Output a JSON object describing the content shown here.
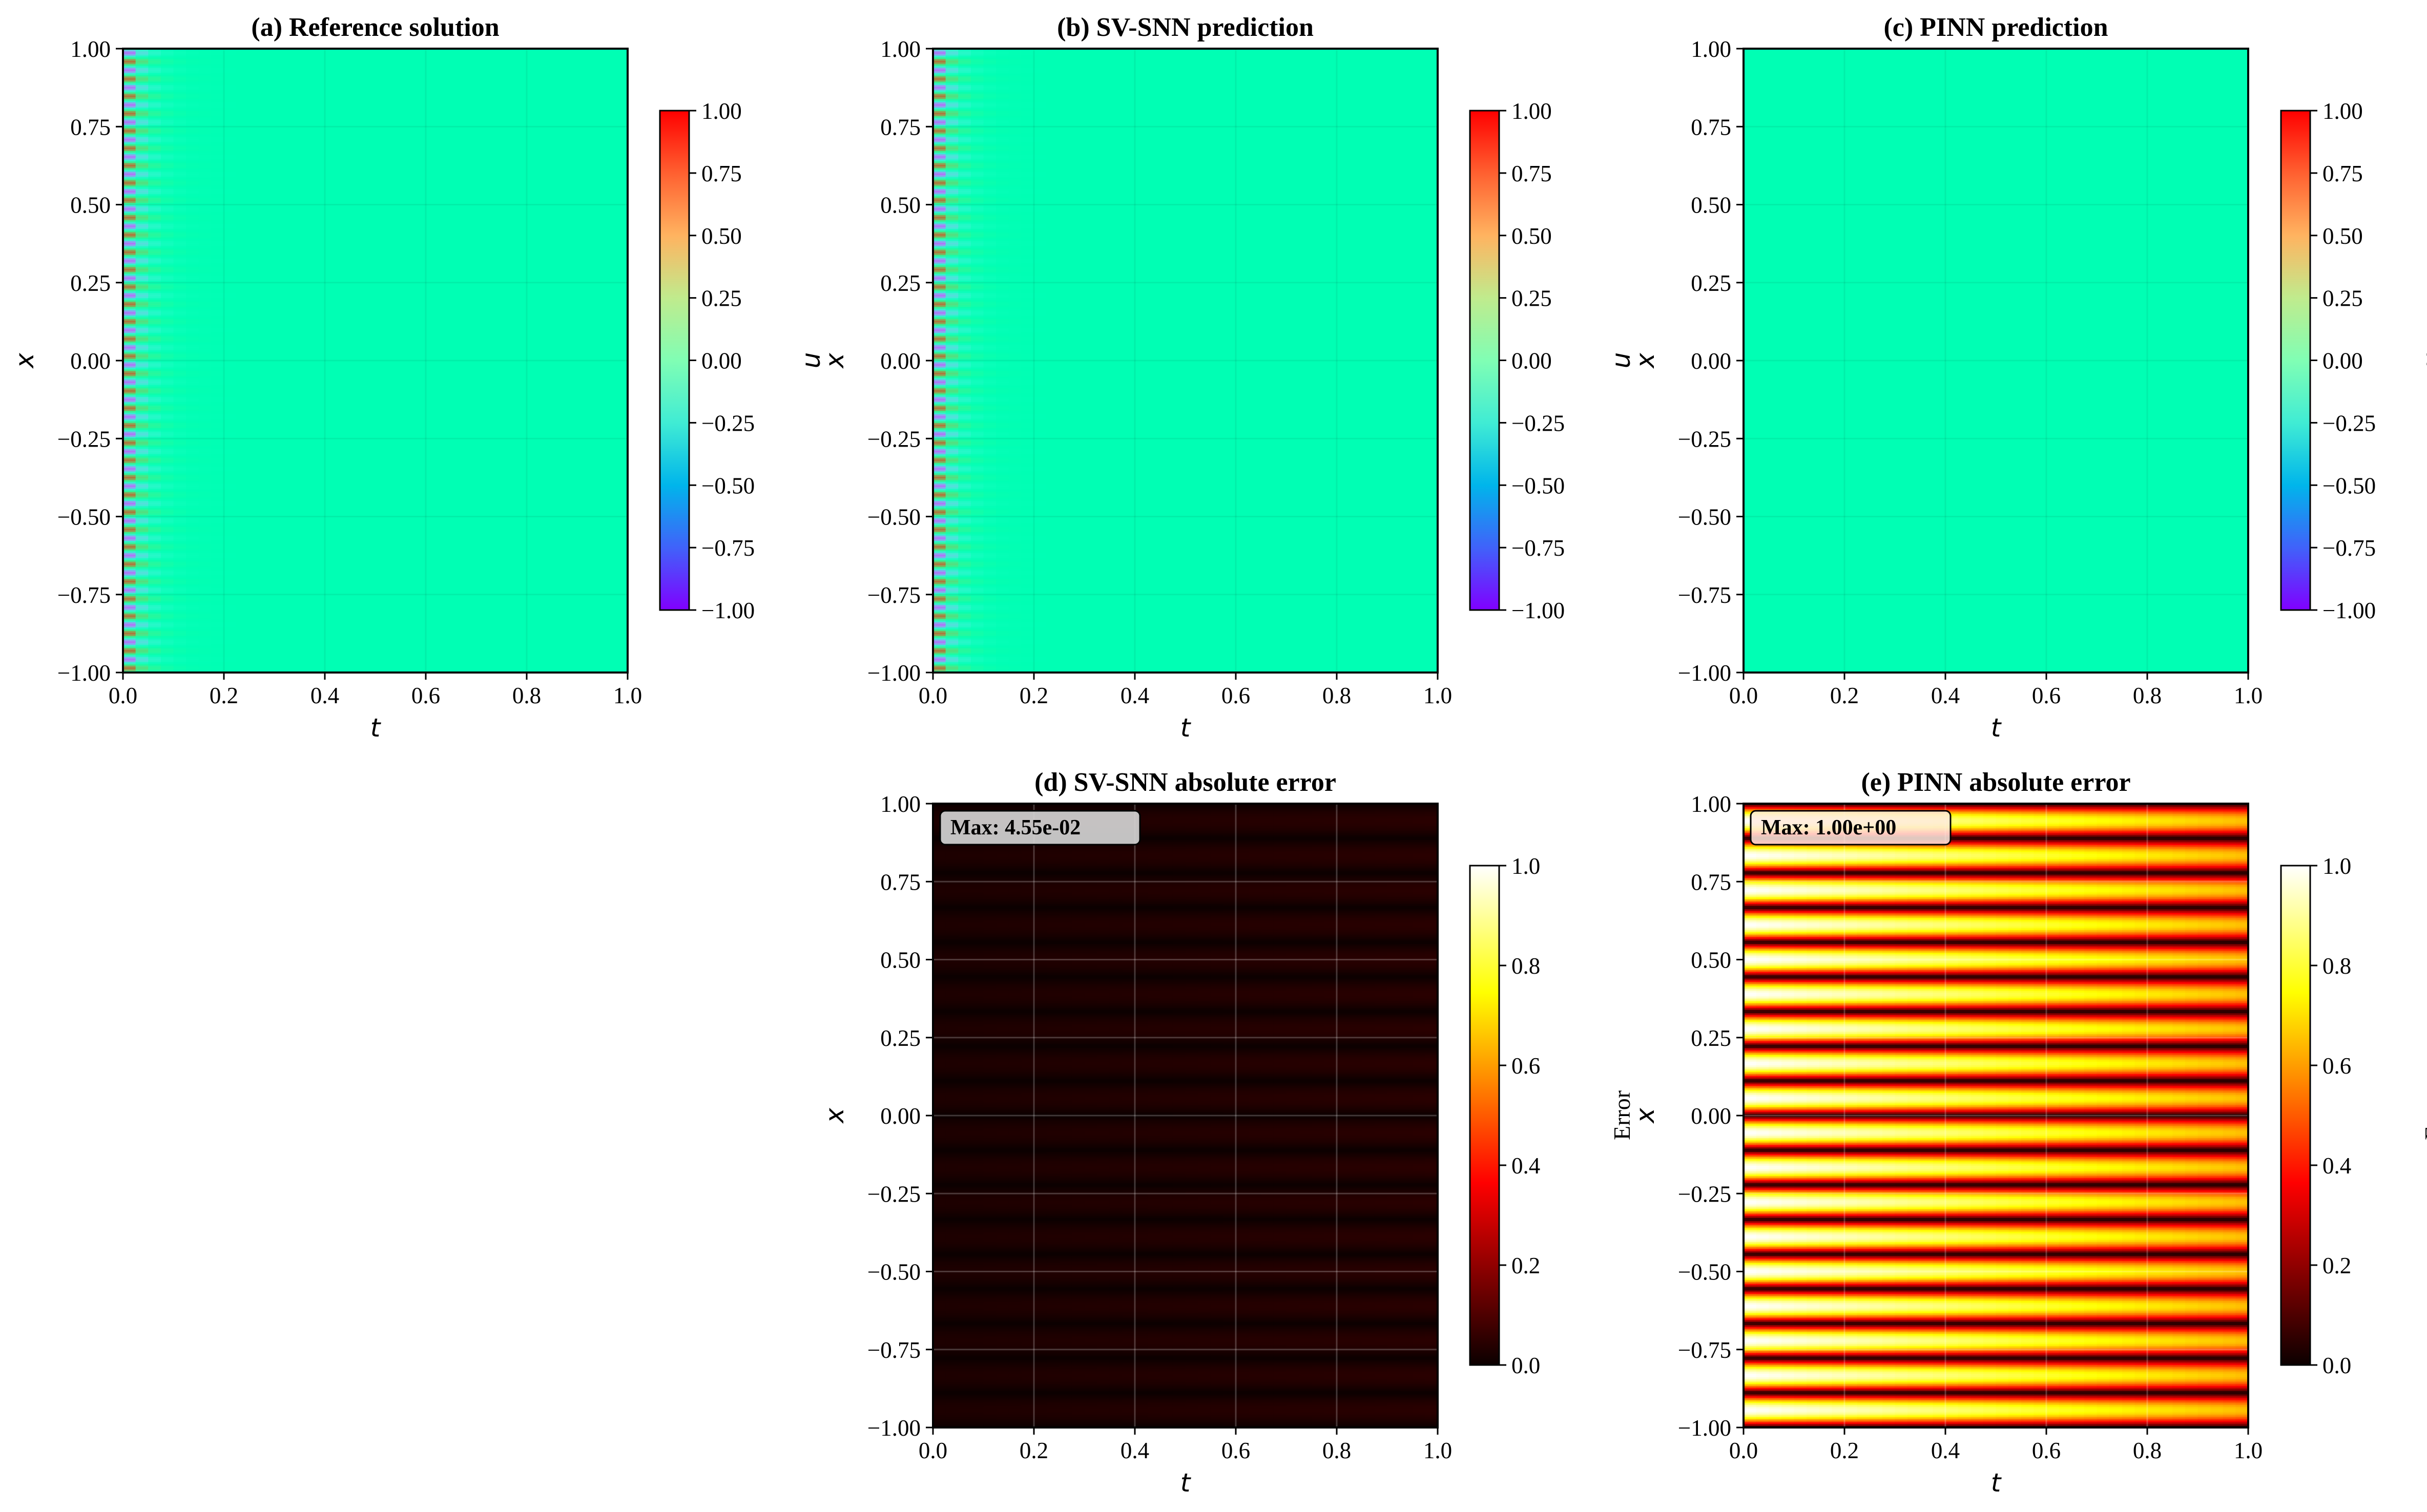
{
  "chart_data": [
    {
      "id": "a",
      "type": "heatmap",
      "title": "(a) Reference solution",
      "xlabel": "t",
      "ylabel": "x",
      "xlim": [
        0,
        1
      ],
      "ylim": [
        -1,
        1
      ],
      "xticks": [
        "0.0",
        "0.2",
        "0.4",
        "0.6",
        "0.8",
        "1.0"
      ],
      "yticks": [
        "1.00",
        "0.75",
        "0.50",
        "0.25",
        "0.00",
        "−0.25",
        "−0.50",
        "−0.75",
        "−1.00"
      ],
      "field": "reference",
      "stripes": 36,
      "decay_rate": 30,
      "initial_amplitude": 1.0,
      "colormap": "rainbow",
      "grid": true,
      "colorbar": {
        "label": "u",
        "range": [
          -1,
          1
        ],
        "ticks": [
          "1.00",
          "0.75",
          "0.50",
          "0.25",
          "0.00",
          "−0.25",
          "−0.50",
          "−0.75",
          "−1.00"
        ]
      }
    },
    {
      "id": "b",
      "type": "heatmap",
      "title": "(b) SV-SNN prediction",
      "xlabel": "t",
      "ylabel": "x",
      "xlim": [
        0,
        1
      ],
      "ylim": [
        -1,
        1
      ],
      "xticks": [
        "0.0",
        "0.2",
        "0.4",
        "0.6",
        "0.8",
        "1.0"
      ],
      "yticks": [
        "1.00",
        "0.75",
        "0.50",
        "0.25",
        "0.00",
        "−0.25",
        "−0.50",
        "−0.75",
        "−1.00"
      ],
      "field": "reference",
      "stripes": 36,
      "decay_rate": 30,
      "initial_amplitude": 1.0,
      "colormap": "rainbow",
      "grid": true,
      "colorbar": {
        "label": "u",
        "range": [
          -1,
          1
        ],
        "ticks": [
          "1.00",
          "0.75",
          "0.50",
          "0.25",
          "0.00",
          "−0.25",
          "−0.50",
          "−0.75",
          "−1.00"
        ]
      }
    },
    {
      "id": "c",
      "type": "heatmap",
      "title": "(c) PINN prediction",
      "xlabel": "t",
      "ylabel": "x",
      "xlim": [
        0,
        1
      ],
      "ylim": [
        -1,
        1
      ],
      "xticks": [
        "0.0",
        "0.2",
        "0.4",
        "0.6",
        "0.8",
        "1.0"
      ],
      "yticks": [
        "1.00",
        "0.75",
        "0.50",
        "0.25",
        "0.00",
        "−0.25",
        "−0.50",
        "−0.75",
        "−1.00"
      ],
      "field": "constant",
      "constant_value": 0.0,
      "colormap": "rainbow",
      "grid": true,
      "colorbar": {
        "label": "u",
        "range": [
          -1,
          1
        ],
        "ticks": [
          "1.00",
          "0.75",
          "0.50",
          "0.25",
          "0.00",
          "−0.25",
          "−0.50",
          "−0.75",
          "−1.00"
        ]
      }
    },
    {
      "id": "d",
      "type": "heatmap",
      "title": "(d) SV-SNN absolute error",
      "xlabel": "t",
      "ylabel": "x",
      "xlim": [
        0,
        1
      ],
      "ylim": [
        -1,
        1
      ],
      "xticks": [
        "0.0",
        "0.2",
        "0.4",
        "0.6",
        "0.8",
        "1.0"
      ],
      "yticks": [
        "1.00",
        "0.75",
        "0.50",
        "0.25",
        "0.00",
        "−0.25",
        "−0.50",
        "−0.75",
        "−1.00"
      ],
      "field": "error_small",
      "max_error": 0.0455,
      "max_label": "Max: 4.55e-02",
      "stripes": 18,
      "colormap": "hot",
      "grid": true,
      "colorbar": {
        "label": "Error",
        "range": [
          0,
          1
        ],
        "ticks": [
          "1.0",
          "0.8",
          "0.6",
          "0.4",
          "0.2",
          "0.0"
        ]
      }
    },
    {
      "id": "e",
      "type": "heatmap",
      "title": "(e) PINN absolute error",
      "xlabel": "t",
      "ylabel": "x",
      "xlim": [
        0,
        1
      ],
      "ylim": [
        -1,
        1
      ],
      "xticks": [
        "0.0",
        "0.2",
        "0.4",
        "0.6",
        "0.8",
        "1.0"
      ],
      "yticks": [
        "1.00",
        "0.75",
        "0.50",
        "0.25",
        "0.00",
        "−0.25",
        "−0.50",
        "−0.75",
        "−1.00"
      ],
      "field": "error_full",
      "max_error": 1.0,
      "max_label": "Max: 1.00e+00",
      "stripes": 18,
      "colormap": "hot",
      "grid": true,
      "colorbar": {
        "label": "Error",
        "range": [
          0,
          1
        ],
        "ticks": [
          "1.0",
          "0.8",
          "0.6",
          "0.4",
          "0.2",
          "0.0"
        ]
      }
    }
  ]
}
